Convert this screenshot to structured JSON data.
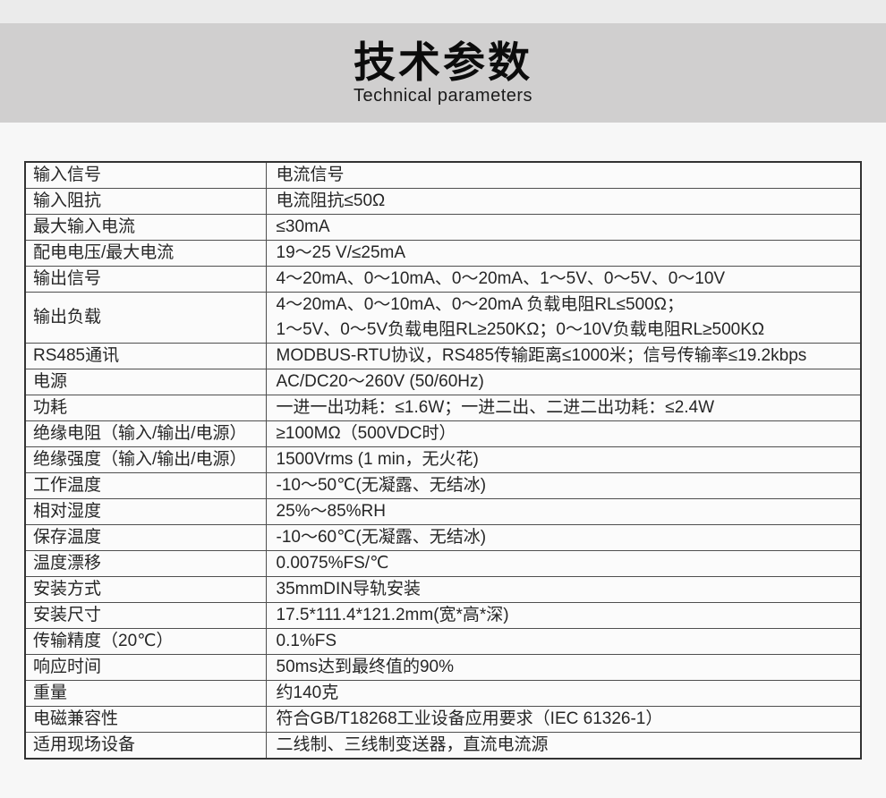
{
  "header": {
    "title": "技术参数",
    "subtitle": "Technical parameters"
  },
  "table": {
    "rows": [
      {
        "label": "输入信号",
        "value": "电流信号"
      },
      {
        "label": "输入阻抗",
        "value": "电流阻抗≤50Ω"
      },
      {
        "label": "最大输入电流",
        "value": "≤30mA"
      },
      {
        "label": "配电电压/最大电流",
        "value": "19～25 V/≤25mA"
      },
      {
        "label": "输出信号",
        "value": "4～20mA、0～10mA、0～20mA、1～5V、0～5V、0～10V"
      },
      {
        "label": "输出负载",
        "value": "4～20mA、0～10mA、0～20mA 负载电阻RL≤500Ω；\n1～5V、0～5V负载电阻RL≥250KΩ；0～10V负载电阻RL≥500KΩ"
      },
      {
        "label": "RS485通讯",
        "value": "MODBUS-RTU协议，RS485传输距离≤1000米；信号传输率≤19.2kbps"
      },
      {
        "label": "电源",
        "value": "AC/DC20～260V (50/60Hz)"
      },
      {
        "label": "功耗",
        "value": "一进一出功耗：≤1.6W；一进二出、二进二出功耗：≤2.4W"
      },
      {
        "label": "绝缘电阻（输入/输出/电源）",
        "value": "≥100MΩ（500VDC时）"
      },
      {
        "label": "绝缘强度（输入/输出/电源）",
        "value": "1500Vrms (1 min，无火花)"
      },
      {
        "label": "工作温度",
        "value": "-10～50℃(无凝露、无结冰)"
      },
      {
        "label": "相对湿度",
        "value": "25%～85%RH"
      },
      {
        "label": "保存温度",
        "value": "-10～60℃(无凝露、无结冰)"
      },
      {
        "label": "温度漂移",
        "value": "0.0075%FS/℃"
      },
      {
        "label": "安装方式",
        "value": "35mmDIN导轨安装"
      },
      {
        "label": "安装尺寸",
        "value": "17.5*111.4*121.2mm(宽*高*深)"
      },
      {
        "label": "传输精度（20℃）",
        "value": "0.1%FS"
      },
      {
        "label": "响应时间",
        "value": "50ms达到最终值的90%"
      },
      {
        "label": "重量",
        "value": "约140克"
      },
      {
        "label": "电磁兼容性",
        "value": "符合GB/T18268工业设备应用要求（IEC 61326-1）"
      },
      {
        "label": "适用现场设备",
        "value": "二线制、三线制变送器，直流电流源"
      }
    ]
  },
  "colors": {
    "page_background": "#f7f7f7",
    "top_strip": "#ebebeb",
    "header_band": "#d0cfcf",
    "table_border": "#333333",
    "table_background": "#fbfbfb",
    "text": "#262626"
  }
}
